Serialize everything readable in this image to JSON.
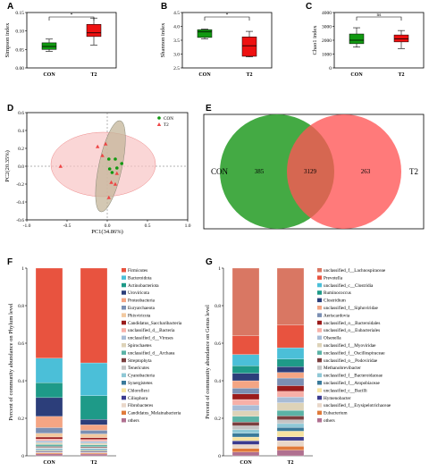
{
  "chart_data": [
    {
      "panel": "A",
      "type": "box",
      "categories": [
        "CON",
        "T2"
      ],
      "ylabel": "Simpson index",
      "ylim": [
        0,
        0.15
      ],
      "yticks": [
        "0.00",
        "0.05",
        "0.10",
        "0.15"
      ],
      "series": [
        {
          "category": "CON",
          "color": "#119911",
          "min": 0.045,
          "q1": 0.05,
          "median": 0.058,
          "q3": 0.068,
          "max": 0.078
        },
        {
          "category": "T2",
          "color": "#ee1111",
          "min": 0.062,
          "q1": 0.085,
          "median": 0.095,
          "q3": 0.118,
          "max": 0.135
        }
      ],
      "significance": "*"
    },
    {
      "panel": "B",
      "type": "box",
      "categories": [
        "CON",
        "T2"
      ],
      "ylabel": "Shannon index",
      "ylim": [
        2.5,
        4.5
      ],
      "yticks": [
        "2.5",
        "3.0",
        "3.5",
        "4.0",
        "4.5"
      ],
      "series": [
        {
          "category": "CON",
          "color": "#119911",
          "min": 3.55,
          "q1": 3.6,
          "median": 3.8,
          "q3": 3.88,
          "max": 3.9
        },
        {
          "category": "T2",
          "color": "#ee1111",
          "min": 2.9,
          "q1": 2.92,
          "median": 3.3,
          "q3": 3.62,
          "max": 3.82
        }
      ],
      "significance": "*"
    },
    {
      "panel": "C",
      "type": "box",
      "categories": [
        "CON",
        "T2"
      ],
      "ylabel": "Chao1 index",
      "ylim": [
        0,
        4000
      ],
      "yticks": [
        "0",
        "1000",
        "2000",
        "3000",
        "4000"
      ],
      "series": [
        {
          "category": "CON",
          "color": "#119911",
          "min": 1500,
          "q1": 1750,
          "median": 2000,
          "q3": 2450,
          "max": 2900
        },
        {
          "category": "T2",
          "color": "#ee1111",
          "min": 1400,
          "q1": 1880,
          "median": 2100,
          "q3": 2380,
          "max": 2700
        }
      ],
      "significance": "ns"
    },
    {
      "panel": "D",
      "type": "scatter",
      "xlabel": "PC1(34.86%)",
      "ylabel": "PC2(20.35%)",
      "xlim": [
        -1.0,
        1.0
      ],
      "ylim": [
        -0.6,
        0.6
      ],
      "xticks": [
        "-1.0",
        "-0.5",
        "0.0",
        "0.5",
        "1.0"
      ],
      "yticks": [
        "-0.6",
        "-0.4",
        "-0.2",
        "0.0",
        "0.2",
        "0.4",
        "0.6"
      ],
      "legend": [
        "CON",
        "T2"
      ],
      "series": [
        {
          "name": "CON",
          "color": "#119911",
          "points": [
            [
              0.02,
              0.08
            ],
            [
              0.1,
              0.08
            ],
            [
              0.12,
              -0.02
            ],
            [
              0.06,
              -0.07
            ],
            [
              0.18,
              0.03
            ],
            [
              0.03,
              -0.03
            ]
          ]
        },
        {
          "name": "T2",
          "color": "#ee4444",
          "points": [
            [
              -0.58,
              0.0
            ],
            [
              -0.12,
              0.22
            ],
            [
              -0.02,
              0.25
            ],
            [
              -0.06,
              0.12
            ],
            [
              0.05,
              -0.18
            ],
            [
              0.02,
              -0.35
            ],
            [
              0.1,
              -0.2
            ],
            [
              0.12,
              -0.08
            ]
          ]
        }
      ]
    },
    {
      "panel": "E",
      "type": "venn",
      "sets": [
        {
          "name": "CON",
          "unique": "385",
          "color": "#44aa44"
        },
        {
          "name": "T2",
          "unique": "263",
          "color": "#ff5555"
        }
      ],
      "shared": "3129"
    },
    {
      "panel": "F",
      "type": "stacked-bar",
      "ylabel": "Percent of community abundance on Phylum level",
      "categories": [
        "CON",
        "T2"
      ],
      "yticks": [
        "0",
        "0.2",
        "0.4",
        "0.6",
        "0.8",
        "1"
      ],
      "series": [
        {
          "name": "Firmicutes",
          "color": "#e8533f",
          "values": [
            0.48,
            0.52
          ]
        },
        {
          "name": "Bacteroidota",
          "color": "#4bbfd8",
          "values": [
            0.13,
            0.18
          ]
        },
        {
          "name": "Actinobacteriota",
          "color": "#1e9a88",
          "values": [
            0.08,
            0.13
          ]
        },
        {
          "name": "Uroviricota",
          "color": "#2c3e7a",
          "values": [
            0.1,
            0.03
          ]
        },
        {
          "name": "Proteobacteria",
          "color": "#f4a584",
          "values": [
            0.06,
            0.03
          ]
        },
        {
          "name": "Euryarchaeota",
          "color": "#7b8fb3",
          "values": [
            0.03,
            0.02
          ]
        },
        {
          "name": "Phixviricota",
          "color": "#f2c9a0",
          "values": [
            0.02,
            0.02
          ]
        },
        {
          "name": "Candidatus_Saccharibacteria",
          "color": "#9b1b1b",
          "values": [
            0.01,
            0.01
          ]
        },
        {
          "name": "unclassified_d__Bacteria",
          "color": "#f7b0a8",
          "values": [
            0.01,
            0.01
          ]
        },
        {
          "name": "unclassified_d__Viruses",
          "color": "#a8bcd6",
          "values": [
            0.01,
            0.01
          ]
        },
        {
          "name": "Spirochaetes",
          "color": "#ddd3b8",
          "values": [
            0.01,
            0.01
          ]
        },
        {
          "name": "unclassified_d__Archaea",
          "color": "#5bb3a6",
          "values": [
            0.01,
            0.01
          ]
        },
        {
          "name": "Streptophyta",
          "color": "#7b3f3f",
          "values": [
            0.005,
            0.005
          ]
        },
        {
          "name": "Tenericutes",
          "color": "#c4c4c4",
          "values": [
            0.005,
            0.005
          ]
        },
        {
          "name": "Cyanobacteria",
          "color": "#8fc8d6",
          "values": [
            0.005,
            0.005
          ]
        },
        {
          "name": "Synergistetes",
          "color": "#3a7a9a",
          "values": [
            0.005,
            0.005
          ]
        },
        {
          "name": "Chloroflexi",
          "color": "#f6e3a0",
          "values": [
            0.005,
            0.005
          ]
        },
        {
          "name": "Ciliophora",
          "color": "#3b3b8f",
          "values": [
            0.005,
            0.005
          ]
        },
        {
          "name": "Fibrobacteres",
          "color": "#e9d7c9",
          "values": [
            0.005,
            0.005
          ]
        },
        {
          "name": "Candidatus_Melainabacteria",
          "color": "#e07a3a",
          "values": [
            0.005,
            0.005
          ]
        },
        {
          "name": "others",
          "color": "#b07090",
          "values": [
            0.01,
            0.01
          ]
        }
      ]
    },
    {
      "panel": "G",
      "type": "stacked-bar",
      "ylabel": "Percent of community abundance on Genus level",
      "categories": [
        "CON",
        "T2"
      ],
      "yticks": [
        "0",
        "0.2",
        "0.4",
        "0.6",
        "0.8",
        "1"
      ],
      "series": [
        {
          "name": "unclassified_f__Lachnospiraceae",
          "color": "#d97763",
          "values": [
            0.36,
            0.3
          ]
        },
        {
          "name": "Prevotella",
          "color": "#e8533f",
          "values": [
            0.1,
            0.12
          ]
        },
        {
          "name": "unclassified_c__Clostridia",
          "color": "#4bbfd8",
          "values": [
            0.06,
            0.06
          ]
        },
        {
          "name": "Ruminococcus",
          "color": "#1e9a88",
          "values": [
            0.04,
            0.04
          ]
        },
        {
          "name": "Clostridium",
          "color": "#2c3e7a",
          "values": [
            0.04,
            0.03
          ]
        },
        {
          "name": "unclassified_f__Siphoviridae",
          "color": "#f4a584",
          "values": [
            0.04,
            0.03
          ]
        },
        {
          "name": "Aeriscardovia",
          "color": "#7b8fb3",
          "values": [
            0.03,
            0.04
          ]
        },
        {
          "name": "unclassified_o__Bacteroidales",
          "color": "#9b1b1b",
          "values": [
            0.03,
            0.03
          ]
        },
        {
          "name": "unclassified_o__Eubacteriales",
          "color": "#f7b0a8",
          "values": [
            0.03,
            0.03
          ]
        },
        {
          "name": "Olsenella",
          "color": "#a8bcd6",
          "values": [
            0.03,
            0.03
          ]
        },
        {
          "name": "unclassified_f__Myoviridae",
          "color": "#ddd3b8",
          "values": [
            0.03,
            0.04
          ]
        },
        {
          "name": "unclassified_f__Oscillospiraceae",
          "color": "#5bb3a6",
          "values": [
            0.03,
            0.03
          ]
        },
        {
          "name": "unclassified_o__Podoviridae",
          "color": "#7b3f3f",
          "values": [
            0.02,
            0.02
          ]
        },
        {
          "name": "Methanobrevibacter",
          "color": "#c4c4c4",
          "values": [
            0.02,
            0.02
          ]
        },
        {
          "name": "unclassified_f__Bacteroidaceae",
          "color": "#8fc8d6",
          "values": [
            0.02,
            0.02
          ]
        },
        {
          "name": "unclassified_f__Atopobiaceae",
          "color": "#3a7a9a",
          "values": [
            0.02,
            0.02
          ]
        },
        {
          "name": "unclassified_c__Bacilli",
          "color": "#f6e3a0",
          "values": [
            0.02,
            0.03
          ]
        },
        {
          "name": "Hymenobacter",
          "color": "#3b3b8f",
          "values": [
            0.02,
            0.02
          ]
        },
        {
          "name": "unclassified_f__Erysipelotrichaceae",
          "color": "#e9d7c9",
          "values": [
            0.02,
            0.03
          ]
        },
        {
          "name": "Eubacterium",
          "color": "#e07a3a",
          "values": [
            0.02,
            0.02
          ]
        },
        {
          "name": "others",
          "color": "#b07090",
          "values": [
            0.02,
            0.03
          ]
        }
      ]
    }
  ]
}
